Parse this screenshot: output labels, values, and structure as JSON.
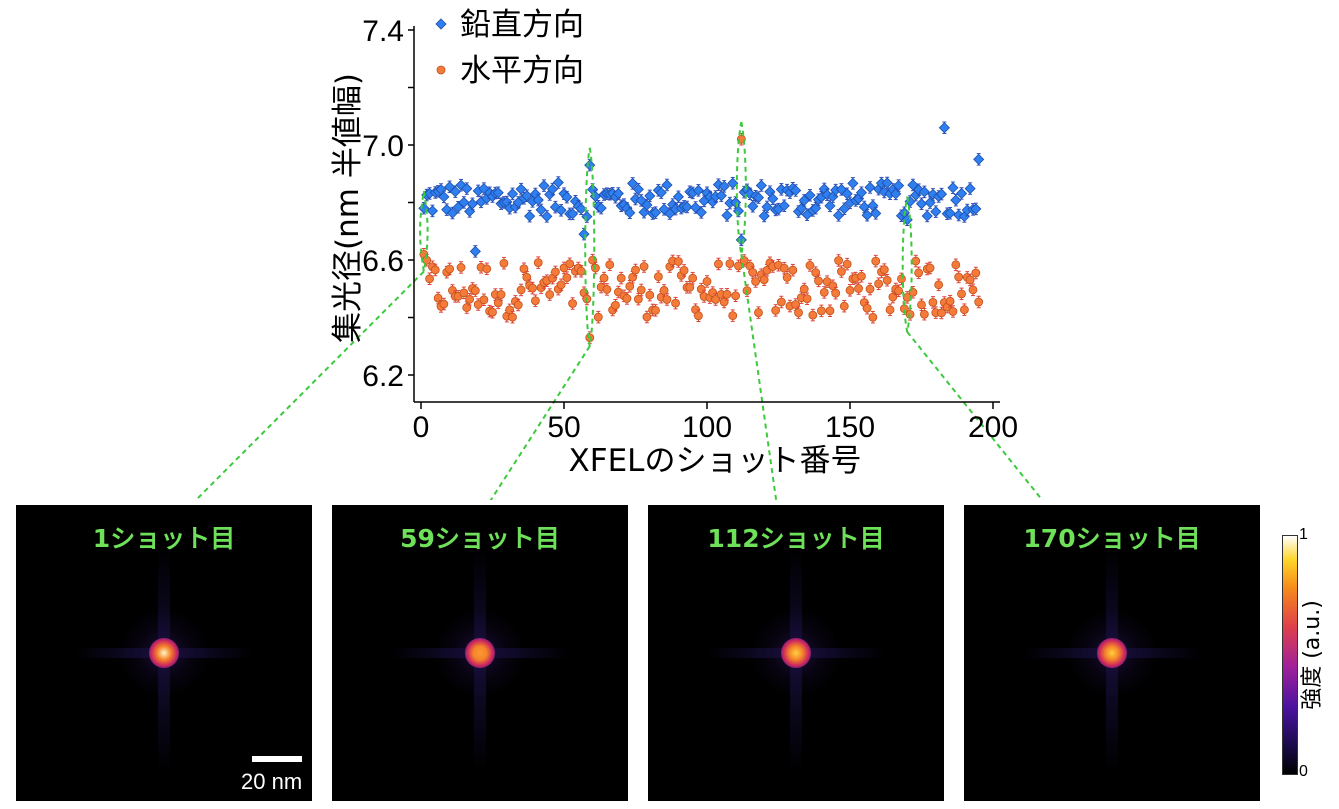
{
  "chart_data": {
    "type": "scatter",
    "xlabel": "XFELのショット番号",
    "ylabel": "集光径(nm 半値幅)",
    "xlim": [
      0,
      200
    ],
    "ylim": [
      6.1,
      7.4
    ],
    "xticks": [
      "0",
      "50",
      "100",
      "150",
      "200"
    ],
    "yticks": [
      "6.2",
      "6.6",
      "7.0",
      "7.4"
    ],
    "error_bar": 0.02,
    "legend_position": "top-left",
    "series": [
      {
        "name": "鉛直方向",
        "marker": "diamond",
        "color": "#2f7ff0"
      },
      {
        "name": "水平方向",
        "marker": "circle",
        "color": "#f57b3a"
      }
    ],
    "highlight_shots": [
      1,
      59,
      112,
      170
    ]
  },
  "panels": [
    {
      "title": "1ショット目",
      "shot": 1,
      "peak": 1.0
    },
    {
      "title": "59ショット目",
      "shot": 59,
      "peak": 0.78
    },
    {
      "title": "112ショット目",
      "shot": 112,
      "peak": 0.85
    },
    {
      "title": "170ショット目",
      "shot": 170,
      "peak": 0.9
    }
  ],
  "scale_bar": "20 nm",
  "colorbar": {
    "label": "強度 (a.u.)",
    "max": "1",
    "min": "0"
  },
  "colors": {
    "vertical": "#2f7ff0",
    "horizontal": "#f57b3a",
    "guide": "#3cc93c",
    "panel_title": "#6ee05a"
  }
}
